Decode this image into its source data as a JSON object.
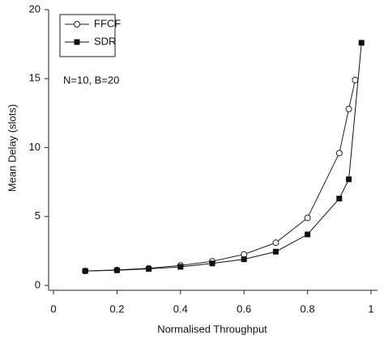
{
  "chart_data": {
    "type": "line",
    "x_label": "Normalised Throughput",
    "y_label": "Mean Delay (slots)",
    "annotation": "N=10, B=20",
    "xlim": [
      0,
      1
    ],
    "xticks": [
      0,
      0.2,
      0.4,
      0.6,
      0.8,
      1
    ],
    "ylim": [
      0,
      20
    ],
    "yticks": [
      0,
      5,
      10,
      15,
      20
    ],
    "grid": false,
    "legend": "upper left",
    "series": [
      {
        "name": "FFCF",
        "color": "#222222",
        "marker": "open-circle",
        "x": [
          0.1,
          0.2,
          0.3,
          0.4,
          0.5,
          0.6,
          0.7,
          0.8,
          0.9,
          0.93,
          0.95
        ],
        "values": [
          1.05,
          1.12,
          1.25,
          1.45,
          1.75,
          2.25,
          3.1,
          4.9,
          9.6,
          12.8,
          14.9
        ]
      },
      {
        "name": "SDR",
        "color": "#111111",
        "marker": "filled-square",
        "x": [
          0.1,
          0.2,
          0.3,
          0.4,
          0.5,
          0.6,
          0.7,
          0.8,
          0.9,
          0.93,
          0.97
        ],
        "values": [
          1.05,
          1.1,
          1.2,
          1.35,
          1.6,
          1.9,
          2.45,
          3.7,
          6.3,
          7.7,
          17.6
        ]
      }
    ]
  }
}
